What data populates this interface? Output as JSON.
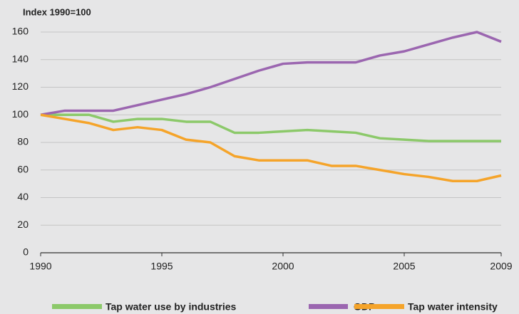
{
  "chart_data": {
    "type": "line",
    "axis_label": "Index 1990=100",
    "x": [
      1990,
      1991,
      1992,
      1993,
      1994,
      1995,
      1996,
      1997,
      1998,
      1999,
      2000,
      2001,
      2002,
      2003,
      2004,
      2005,
      2006,
      2007,
      2008,
      2009
    ],
    "series": [
      {
        "name": "Tap water use by industries",
        "color": "#8cc96a",
        "values": [
          100,
          100,
          100,
          95,
          97,
          97,
          95,
          95,
          87,
          87,
          88,
          89,
          88,
          87,
          83,
          82,
          81,
          81,
          81,
          81
        ]
      },
      {
        "name": "GDP",
        "color": "#9b66b0",
        "values": [
          100,
          103,
          103,
          103,
          107,
          111,
          115,
          120,
          126,
          132,
          137,
          138,
          138,
          138,
          143,
          146,
          151,
          156,
          160,
          153
        ]
      },
      {
        "name": "Tap water intensity",
        "color": "#f5a42a",
        "values": [
          100,
          97,
          94,
          89,
          91,
          89,
          82,
          80,
          70,
          67,
          67,
          67,
          63,
          63,
          60,
          57,
          55,
          52,
          52,
          56
        ]
      }
    ],
    "xlim": [
      1990,
      2009
    ],
    "xticks": [
      1990,
      1995,
      2000,
      2005,
      2009
    ],
    "ylim": [
      0,
      160
    ],
    "yticks": [
      0,
      20,
      40,
      60,
      80,
      100,
      120,
      140,
      160
    ],
    "grid": true,
    "legend": "bottom"
  }
}
